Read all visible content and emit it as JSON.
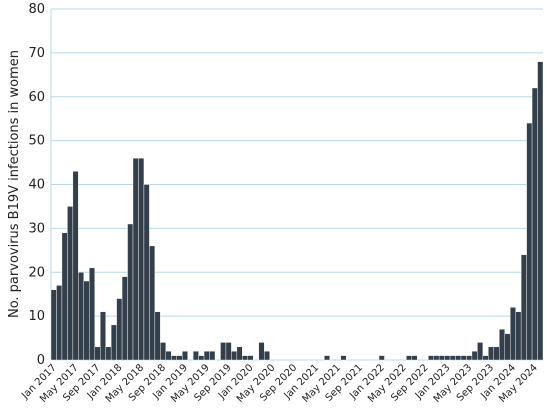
{
  "chart_data": {
    "type": "bar",
    "y_label": "No. parvovirus B19V infections in women",
    "categories": [
      "Jan 2017",
      null,
      null,
      null,
      "May 2017",
      null,
      null,
      null,
      "Sep 2017",
      null,
      null,
      null,
      "Jan 2018",
      null,
      null,
      null,
      "May 2018",
      null,
      null,
      null,
      "Sep 2018",
      null,
      null,
      null,
      "Jan 2019",
      null,
      null,
      null,
      "May 2019",
      null,
      null,
      null,
      "Sep 2019",
      null,
      null,
      null,
      "Jan 2020",
      null,
      null,
      null,
      "May 2020",
      null,
      null,
      null,
      "Sep 2020",
      null,
      null,
      null,
      "Jan 2021",
      null,
      null,
      null,
      "May 2021",
      null,
      null,
      null,
      "Sep 2021",
      null,
      null,
      null,
      "Jan 2022",
      null,
      null,
      null,
      "May 2022",
      null,
      null,
      null,
      "Sep 2022",
      null,
      null,
      null,
      "Jan 2023",
      null,
      null,
      null,
      "May 2023",
      null,
      null,
      null,
      "Sep 2023",
      null,
      null,
      null,
      "Jan 2024",
      null,
      null,
      null,
      "May 2024",
      null
    ],
    "values": [
      16,
      17,
      29,
      35,
      43,
      20,
      18,
      21,
      3,
      11,
      3,
      8,
      14,
      19,
      31,
      46,
      46,
      40,
      26,
      11,
      4,
      2,
      1,
      1,
      2,
      0,
      2,
      1,
      2,
      2,
      0,
      4,
      4,
      2,
      3,
      1,
      1,
      0,
      4,
      2,
      0,
      0,
      0,
      0,
      0,
      0,
      0,
      0,
      0,
      0,
      1,
      0,
      0,
      1,
      0,
      0,
      0,
      0,
      0,
      0,
      1,
      0,
      0,
      0,
      0,
      1,
      1,
      0,
      0,
      1,
      1,
      1,
      1,
      1,
      1,
      1,
      1,
      2,
      4,
      1,
      3,
      3,
      7,
      6,
      12,
      11,
      24,
      54,
      62,
      68
    ],
    "color": "#343f4c",
    "ylim": [
      0,
      80
    ],
    "yticks": [
      0,
      10,
      20,
      30,
      40,
      50,
      60,
      70,
      80
    ],
    "grid": true
  }
}
